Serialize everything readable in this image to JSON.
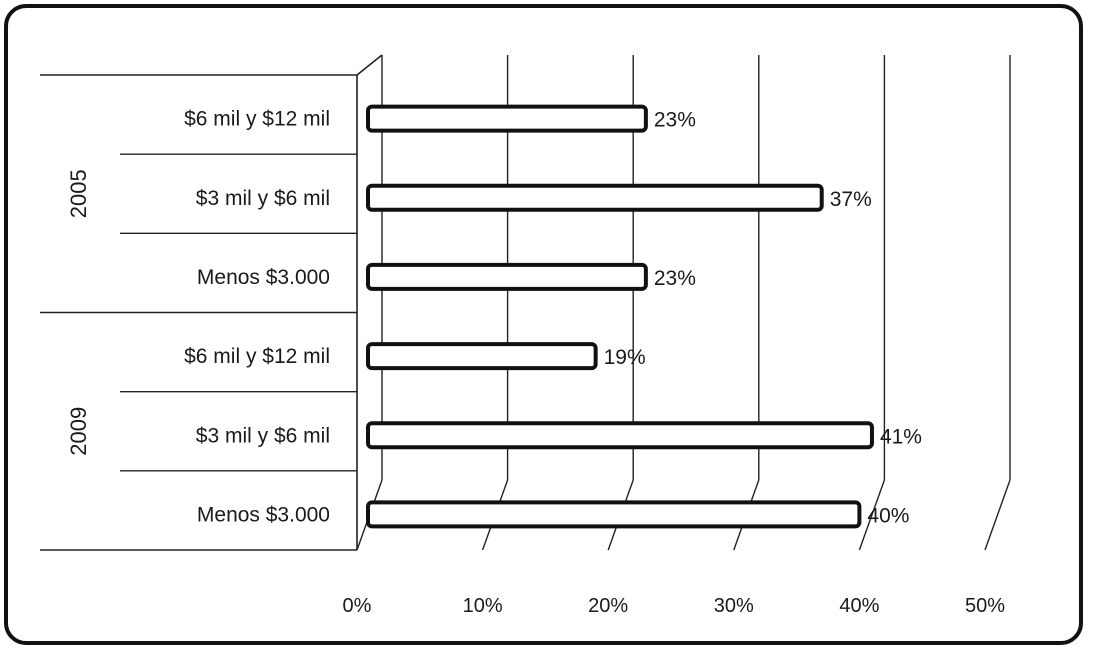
{
  "chart_data": {
    "type": "bar",
    "orientation": "horizontal",
    "groups": [
      {
        "label": "2005",
        "categories": [
          "$6 mil y $12 mil",
          "$3 mil y $6 mil",
          "Menos $3.000"
        ],
        "values": [
          23,
          37,
          23
        ]
      },
      {
        "label": "2009",
        "categories": [
          "$6 mil y $12 mil",
          "$3 mil y $6 mil",
          "Menos $3.000"
        ],
        "values": [
          19,
          41,
          40
        ]
      }
    ],
    "data_labels": [
      "23%",
      "37%",
      "23%",
      "19%",
      "41%",
      "40%"
    ],
    "x_ticks": [
      "0%",
      "10%",
      "20%",
      "30%",
      "40%",
      "50%"
    ],
    "xlim": [
      0,
      50
    ],
    "grid": true,
    "legend": "none",
    "bar_color": "#ffffff",
    "bar_border_color": "#111111"
  }
}
